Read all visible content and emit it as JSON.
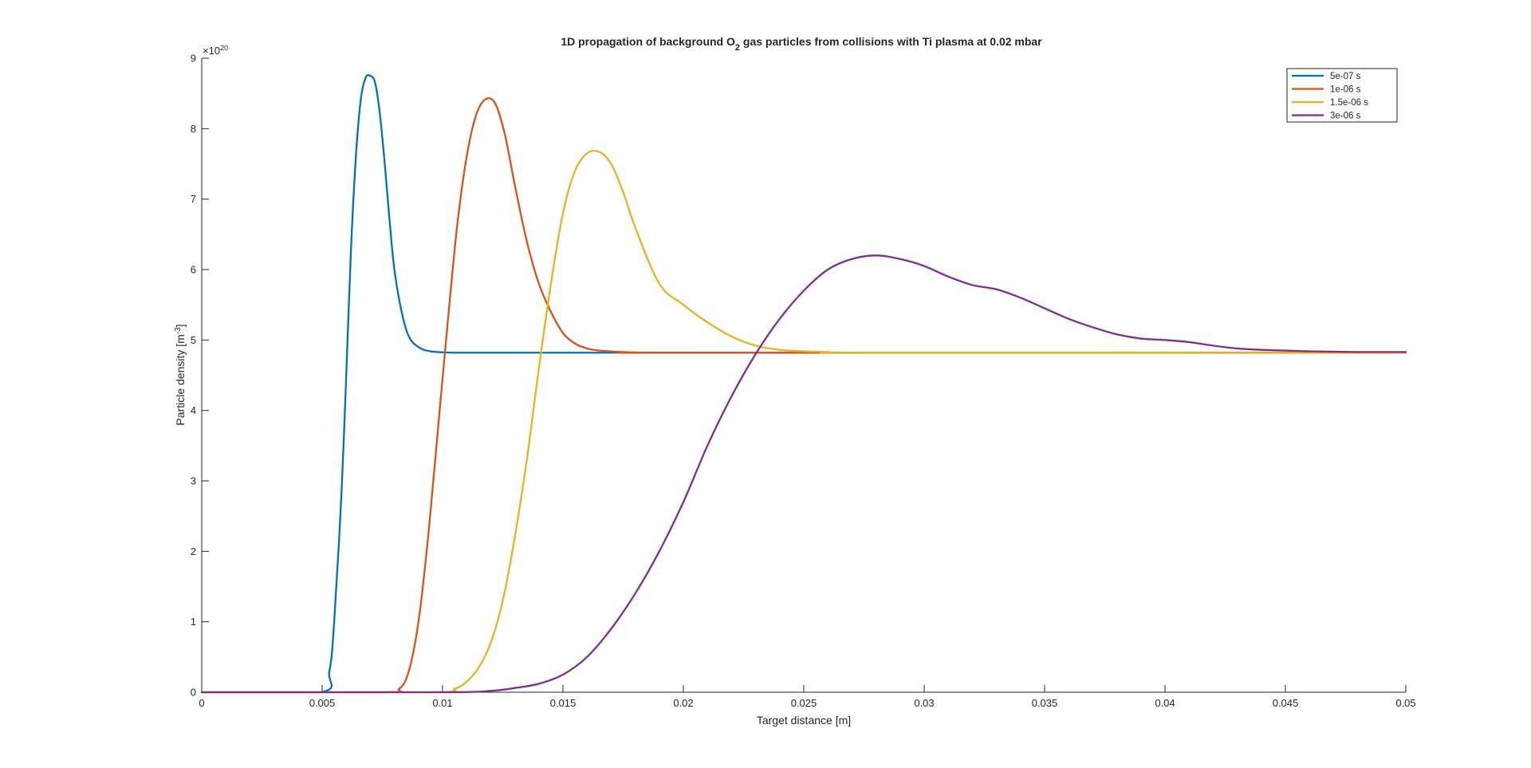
{
  "chart_data": {
    "type": "line",
    "title_parts": {
      "before": "1D propagation of background O",
      "subscript": "2",
      "after": " gas particles from collisions with Ti plasma at 0.02 mbar"
    },
    "xlabel": "Target distance [m]",
    "ylabel_parts": {
      "before": "Particle density [m",
      "superscript": "-3",
      "after": "]"
    },
    "y_exponent_parts": {
      "base": "×10",
      "superscript": "20"
    },
    "xlim": [
      0,
      0.05
    ],
    "ylim": [
      0,
      9
    ],
    "y_scale_factor": 1e+20,
    "x_ticks": [
      0,
      0.005,
      0.01,
      0.015,
      0.02,
      0.025,
      0.03,
      0.035,
      0.04,
      0.045,
      0.05
    ],
    "x_tick_labels": [
      "0",
      "0.005",
      "0.01",
      "0.015",
      "0.02",
      "0.025",
      "0.03",
      "0.035",
      "0.04",
      "0.045",
      "0.05"
    ],
    "y_ticks": [
      0,
      1,
      2,
      3,
      4,
      5,
      6,
      7,
      8,
      9
    ],
    "y_tick_labels": [
      "0",
      "1",
      "2",
      "3",
      "4",
      "5",
      "6",
      "7",
      "8",
      "9"
    ],
    "grid": false,
    "legend_position": "top-right",
    "series": [
      {
        "name": "5e-07 s",
        "color": "#0072BD",
        "x": [
          0,
          0.0049,
          0.0053,
          0.0055,
          0.0058,
          0.006,
          0.0062,
          0.0064,
          0.0066,
          0.0068,
          0.007,
          0.0072,
          0.0074,
          0.0076,
          0.0078,
          0.008,
          0.0083,
          0.0086,
          0.009,
          0.0095,
          0.0105,
          0.0125,
          0.015,
          0.05
        ],
        "y": [
          0,
          0,
          0.3,
          1.0,
          2.8,
          4.5,
          6.3,
          7.6,
          8.4,
          8.72,
          8.75,
          8.65,
          8.2,
          7.5,
          6.7,
          6.0,
          5.4,
          5.05,
          4.9,
          4.84,
          4.82,
          4.82,
          4.82,
          4.82
        ]
      },
      {
        "name": "1e-06 s",
        "color": "#D95319",
        "x": [
          0,
          0.0075,
          0.0082,
          0.0086,
          0.009,
          0.0094,
          0.0098,
          0.0102,
          0.0106,
          0.011,
          0.0114,
          0.0118,
          0.0122,
          0.0126,
          0.013,
          0.0135,
          0.014,
          0.0145,
          0.015,
          0.0155,
          0.016,
          0.0165,
          0.0175,
          0.0185,
          0.02,
          0.05
        ],
        "y": [
          0,
          0,
          0.05,
          0.3,
          1.0,
          2.2,
          3.7,
          5.2,
          6.6,
          7.6,
          8.2,
          8.42,
          8.35,
          7.9,
          7.2,
          6.4,
          5.8,
          5.4,
          5.1,
          4.95,
          4.88,
          4.85,
          4.83,
          4.82,
          4.82,
          4.82
        ]
      },
      {
        "name": "1.5e-06 s",
        "color": "#EDB120",
        "x": [
          0,
          0.0095,
          0.0105,
          0.011,
          0.0115,
          0.012,
          0.0125,
          0.013,
          0.0135,
          0.014,
          0.0145,
          0.015,
          0.0155,
          0.016,
          0.0165,
          0.017,
          0.0175,
          0.018,
          0.019,
          0.02,
          0.021,
          0.022,
          0.023,
          0.024,
          0.025,
          0.026,
          0.028,
          0.05
        ],
        "y": [
          0,
          0,
          0.05,
          0.15,
          0.35,
          0.7,
          1.3,
          2.2,
          3.3,
          4.6,
          5.8,
          6.8,
          7.4,
          7.65,
          7.67,
          7.5,
          7.1,
          6.6,
          5.8,
          5.5,
          5.25,
          5.05,
          4.92,
          4.86,
          4.84,
          4.83,
          4.82,
          4.82
        ]
      },
      {
        "name": "3e-06 s",
        "color": "#7E2F8E",
        "x": [
          0,
          0.01,
          0.012,
          0.013,
          0.014,
          0.015,
          0.016,
          0.017,
          0.018,
          0.019,
          0.02,
          0.021,
          0.022,
          0.023,
          0.024,
          0.025,
          0.026,
          0.027,
          0.028,
          0.029,
          0.03,
          0.031,
          0.032,
          0.033,
          0.034,
          0.035,
          0.036,
          0.037,
          0.038,
          0.039,
          0.04,
          0.041,
          0.042,
          0.043,
          0.044,
          0.045,
          0.046,
          0.048,
          0.05
        ],
        "y": [
          0,
          0.0,
          0.02,
          0.06,
          0.12,
          0.25,
          0.5,
          0.9,
          1.4,
          2.0,
          2.7,
          3.5,
          4.2,
          4.8,
          5.3,
          5.7,
          6.0,
          6.15,
          6.2,
          6.15,
          6.05,
          5.9,
          5.78,
          5.72,
          5.6,
          5.45,
          5.3,
          5.18,
          5.08,
          5.02,
          5.0,
          4.97,
          4.92,
          4.88,
          4.86,
          4.85,
          4.84,
          4.83,
          4.83
        ]
      }
    ]
  }
}
